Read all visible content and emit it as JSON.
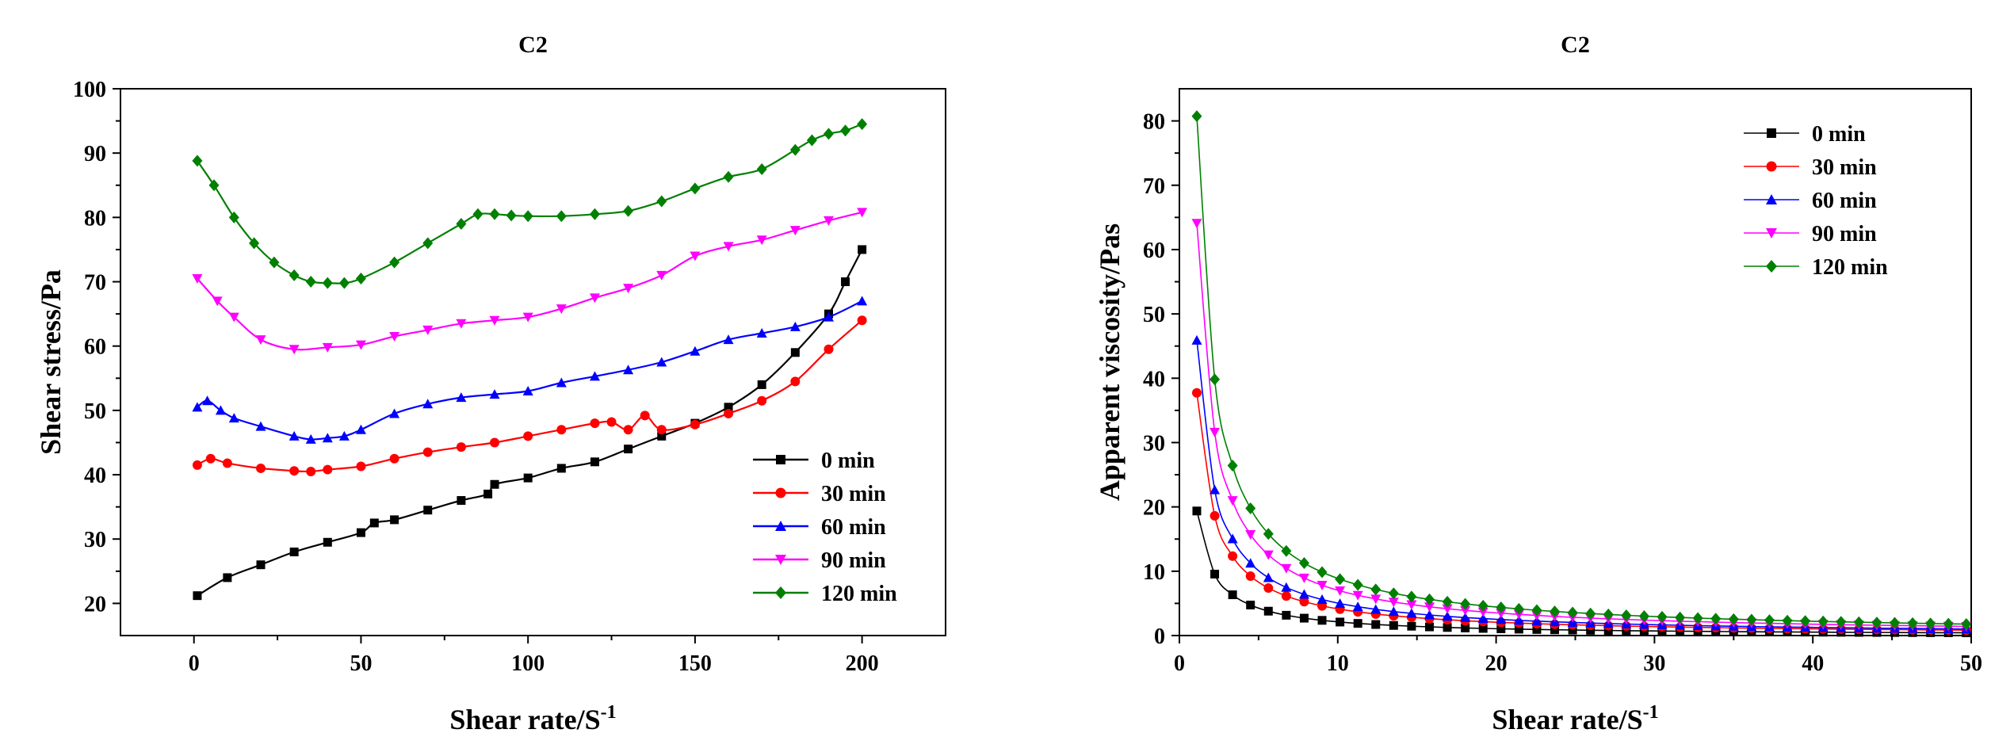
{
  "chart_data": [
    {
      "type": "line",
      "title": "C2",
      "xlabel": "Shear rate/S",
      "xlabel_sup": "-1",
      "ylabel": "Shear stress/Pa",
      "xlim": [
        -22,
        225
      ],
      "ylim": [
        15,
        100
      ],
      "xticks": [
        0,
        50,
        100,
        150,
        200
      ],
      "yticks": [
        20,
        30,
        40,
        50,
        60,
        70,
        80,
        90,
        100
      ],
      "legend_position": "bottom-right",
      "grid": false,
      "series": [
        {
          "name": "0 min",
          "color": "#000000",
          "marker": "square",
          "x": [
            1,
            10,
            20,
            30,
            40,
            50,
            54,
            60,
            70,
            80,
            88,
            90,
            100,
            110,
            120,
            130,
            140,
            150,
            160,
            170,
            180,
            190,
            195,
            200
          ],
          "y": [
            21.2,
            24,
            26,
            28,
            29.5,
            31,
            32.5,
            33,
            34.5,
            36,
            37,
            38.5,
            39.5,
            41,
            42,
            44,
            46,
            48,
            50.5,
            54,
            59,
            65,
            70,
            75
          ]
        },
        {
          "name": "30 min",
          "color": "#ff0000",
          "marker": "circle",
          "x": [
            1,
            5,
            10,
            20,
            30,
            35,
            40,
            50,
            60,
            70,
            80,
            90,
            100,
            110,
            120,
            125,
            130,
            135,
            140,
            150,
            160,
            170,
            180,
            190,
            200
          ],
          "y": [
            41.5,
            42.5,
            41.8,
            41,
            40.6,
            40.5,
            40.8,
            41.3,
            42.5,
            43.5,
            44.3,
            45,
            46,
            47,
            48,
            48.2,
            47,
            49.2,
            47,
            47.8,
            49.5,
            51.5,
            54.5,
            59.5,
            64
          ]
        },
        {
          "name": "60 min",
          "color": "#0000ff",
          "marker": "triangle-up",
          "x": [
            1,
            4,
            8,
            12,
            20,
            30,
            35,
            40,
            45,
            50,
            60,
            70,
            80,
            90,
            100,
            110,
            120,
            130,
            140,
            150,
            160,
            170,
            180,
            190,
            200
          ],
          "y": [
            50.5,
            51.5,
            50,
            48.8,
            47.5,
            46,
            45.5,
            45.7,
            46,
            47,
            49.5,
            51,
            52,
            52.5,
            53,
            54.3,
            55.3,
            56.3,
            57.5,
            59.2,
            61,
            62,
            63,
            64.5,
            67
          ]
        },
        {
          "name": "90 min",
          "color": "#ff00ff",
          "marker": "triangle-down",
          "x": [
            1,
            7,
            12,
            20,
            30,
            40,
            50,
            60,
            70,
            80,
            90,
            100,
            110,
            120,
            130,
            140,
            150,
            160,
            170,
            180,
            190,
            200
          ],
          "y": [
            70.5,
            67,
            64.5,
            61,
            59.5,
            59.8,
            60.2,
            61.5,
            62.5,
            63.5,
            64,
            64.5,
            65.8,
            67.5,
            69,
            71,
            74,
            75.5,
            76.5,
            78,
            79.5,
            80.8
          ]
        },
        {
          "name": "120 min",
          "color": "#008000",
          "marker": "diamond",
          "x": [
            1,
            6,
            12,
            18,
            24,
            30,
            35,
            40,
            45,
            50,
            60,
            70,
            80,
            85,
            90,
            95,
            100,
            110,
            120,
            130,
            140,
            150,
            160,
            170,
            180,
            185,
            190,
            195,
            200
          ],
          "y": [
            88.8,
            85,
            80,
            76,
            73,
            71,
            70,
            69.8,
            69.8,
            70.5,
            73,
            76,
            79,
            80.5,
            80.5,
            80.3,
            80.2,
            80.2,
            80.5,
            81,
            82.5,
            84.5,
            86.3,
            87.5,
            90.5,
            92,
            93,
            93.5,
            94.5
          ]
        }
      ]
    },
    {
      "type": "line",
      "title": "C2",
      "xlabel": "Shear rate/S",
      "xlabel_sup": "-1",
      "ylabel": "Apparent viscosity/Pas",
      "xlim": [
        0,
        50
      ],
      "ylim": [
        0,
        85
      ],
      "xticks": [
        0,
        10,
        20,
        30,
        40,
        50
      ],
      "yticks": [
        0,
        10,
        20,
        30,
        40,
        50,
        60,
        70,
        80
      ],
      "legend_position": "top-right",
      "grid": false,
      "series": [
        {
          "name": "0 min",
          "color": "#000000",
          "marker": "square",
          "k": 21.3
        },
        {
          "name": "30 min",
          "color": "#ff0000",
          "marker": "circle",
          "k": 41.5
        },
        {
          "name": "60 min",
          "color": "#0000ff",
          "marker": "triangle-up",
          "k": 50.5
        },
        {
          "name": "90 min",
          "color": "#ff00ff",
          "marker": "triangle-down",
          "k": 70.5
        },
        {
          "name": "120 min",
          "color": "#008000",
          "marker": "diamond",
          "k": 88.8
        }
      ]
    }
  ]
}
